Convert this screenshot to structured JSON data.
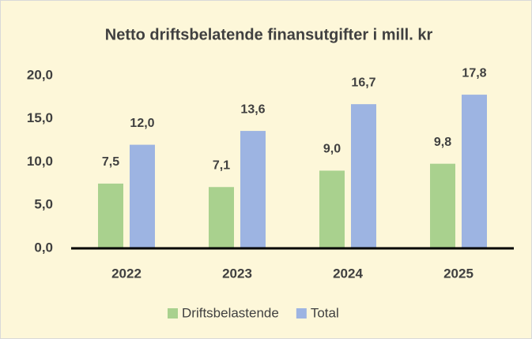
{
  "chart_data": {
    "type": "bar",
    "title": "Netto driftsbelatende finansutgifter i mill. kr",
    "categories": [
      "2022",
      "2023",
      "2024",
      "2025"
    ],
    "series": [
      {
        "name": "Driftsbelastende",
        "color": "#a9d18e",
        "values": [
          7.5,
          7.1,
          9.0,
          9.8
        ],
        "value_labels": [
          "7,5",
          "7,1",
          "9,0",
          "9,8"
        ]
      },
      {
        "name": "Total",
        "color": "#9db4e2",
        "values": [
          12.0,
          13.6,
          16.7,
          17.8
        ],
        "value_labels": [
          "12,0",
          "13,6",
          "16,7",
          "17,8"
        ]
      }
    ],
    "ylim": [
      0,
      20
    ],
    "yticks": [
      {
        "value": 0,
        "label": "0,0"
      },
      {
        "value": 5,
        "label": "5,0"
      },
      {
        "value": 10,
        "label": "10,0"
      },
      {
        "value": 15,
        "label": "15,0"
      },
      {
        "value": 20,
        "label": "20,0"
      }
    ],
    "grid": false,
    "legend": "bottom"
  }
}
